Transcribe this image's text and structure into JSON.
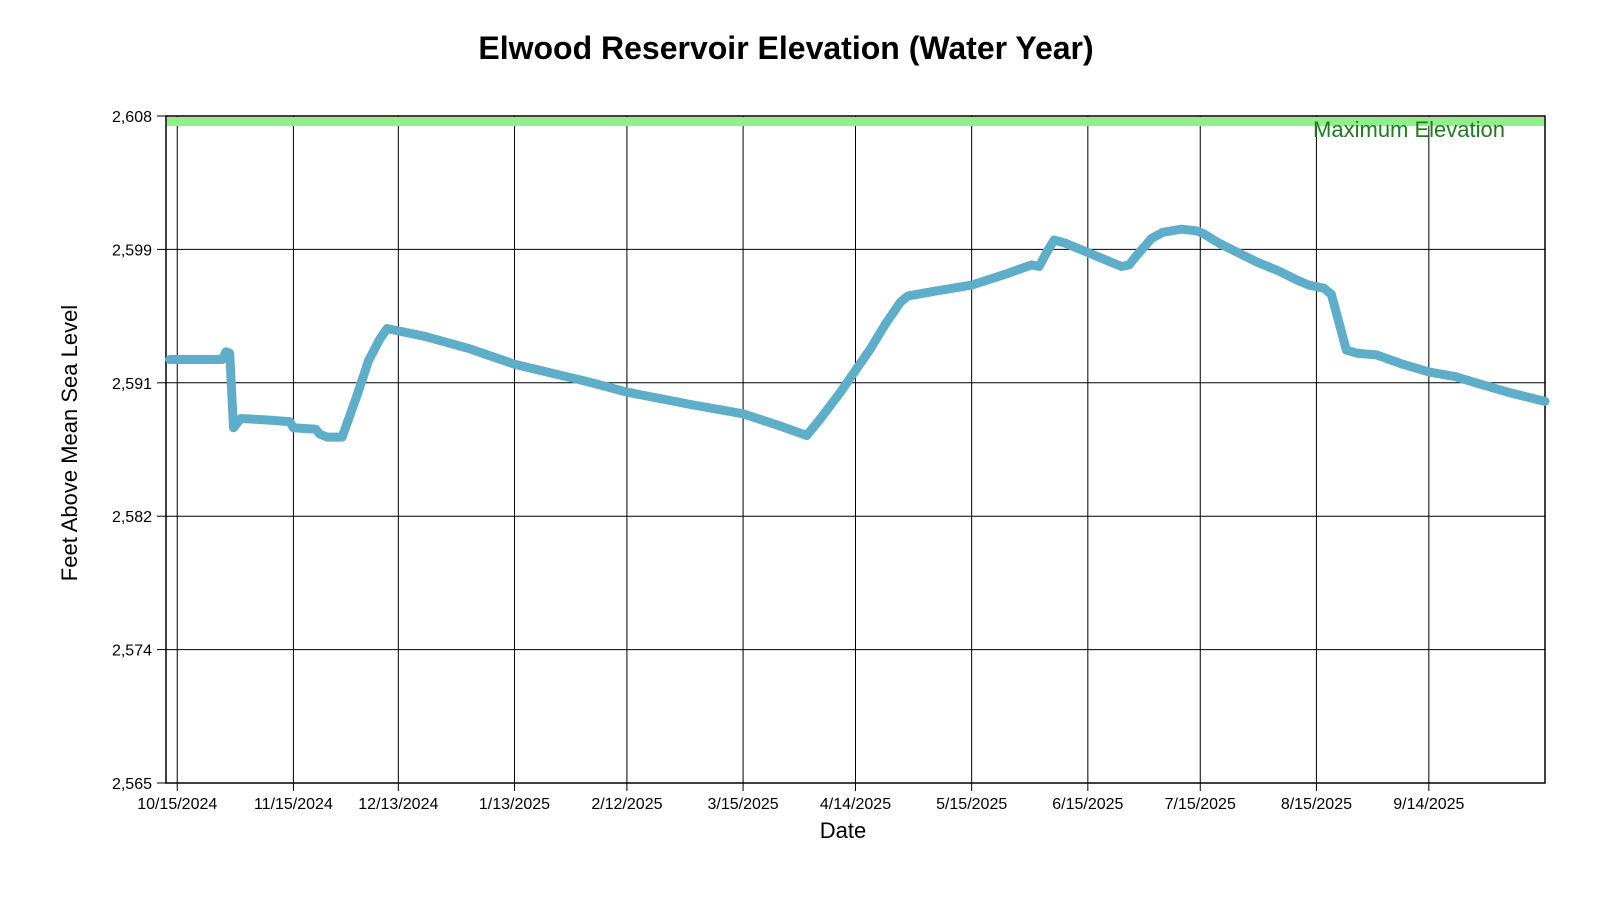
{
  "chart_data": {
    "type": "line",
    "title": "Elwood Reservoir Elevation (Water Year)",
    "xlabel": "Date",
    "ylabel": "Feet Above Mean Sea Level",
    "grid": true,
    "x_range": {
      "min": "2024-10-12",
      "max": "2025-10-15"
    },
    "y_range": {
      "min": 2565,
      "max": 2608
    },
    "x_ticks": [
      {
        "date": "2024-10-15",
        "label": "10/15/2024"
      },
      {
        "date": "2024-11-15",
        "label": "11/15/2024"
      },
      {
        "date": "2024-12-13",
        "label": "12/13/2024"
      },
      {
        "date": "2025-01-13",
        "label": "1/13/2025"
      },
      {
        "date": "2025-02-12",
        "label": "2/12/2025"
      },
      {
        "date": "2025-03-15",
        "label": "3/15/2025"
      },
      {
        "date": "2025-04-14",
        "label": "4/14/2025"
      },
      {
        "date": "2025-05-15",
        "label": "5/15/2025"
      },
      {
        "date": "2025-06-15",
        "label": "6/15/2025"
      },
      {
        "date": "2025-07-15",
        "label": "7/15/2025"
      },
      {
        "date": "2025-08-15",
        "label": "8/15/2025"
      },
      {
        "date": "2025-09-14",
        "label": "9/14/2025"
      }
    ],
    "y_ticks": [
      {
        "value": 2565.0,
        "label": "2,565"
      },
      {
        "value": 2573.6,
        "label": "2,574"
      },
      {
        "value": 2582.2,
        "label": "2,582"
      },
      {
        "value": 2590.8,
        "label": "2,591"
      },
      {
        "value": 2599.4,
        "label": "2,599"
      },
      {
        "value": 2608.0,
        "label": "2,608"
      }
    ],
    "max_elevation": {
      "value": 2608,
      "label": "Maximum Elevation",
      "band_color": "#90EE90",
      "text_color": "#1E7B1E"
    },
    "series": [
      {
        "name": "Reservoir Elevation",
        "color": "#5FAEC9",
        "width": 9,
        "points": [
          [
            "2024-10-13",
            2592.3
          ],
          [
            "2024-10-27",
            2592.3
          ],
          [
            "2024-10-28",
            2592.8
          ],
          [
            "2024-10-29",
            2592.7
          ],
          [
            "2024-10-30",
            2587.9
          ],
          [
            "2024-11-01",
            2588.5
          ],
          [
            "2024-11-08",
            2588.4
          ],
          [
            "2024-11-14",
            2588.3
          ],
          [
            "2024-11-15",
            2587.9
          ],
          [
            "2024-11-21",
            2587.8
          ],
          [
            "2024-11-22",
            2587.5
          ],
          [
            "2024-11-24",
            2587.3
          ],
          [
            "2024-11-28",
            2587.3
          ],
          [
            "2024-12-02",
            2590.0
          ],
          [
            "2024-12-05",
            2592.2
          ],
          [
            "2024-12-08",
            2593.6
          ],
          [
            "2024-12-10",
            2594.3
          ],
          [
            "2024-12-12",
            2594.2
          ],
          [
            "2024-12-20",
            2593.8
          ],
          [
            "2025-01-01",
            2593.0
          ],
          [
            "2025-01-13",
            2592.0
          ],
          [
            "2025-02-01",
            2590.9
          ],
          [
            "2025-02-12",
            2590.2
          ],
          [
            "2025-03-01",
            2589.4
          ],
          [
            "2025-03-15",
            2588.8
          ],
          [
            "2025-03-25",
            2588.0
          ],
          [
            "2025-04-01",
            2587.4
          ],
          [
            "2025-04-05",
            2588.6
          ],
          [
            "2025-04-10",
            2590.2
          ],
          [
            "2025-04-14",
            2591.6
          ],
          [
            "2025-04-18",
            2593.0
          ],
          [
            "2025-04-22",
            2594.6
          ],
          [
            "2025-04-26",
            2596.0
          ],
          [
            "2025-04-28",
            2596.4
          ],
          [
            "2025-05-05",
            2596.7
          ],
          [
            "2025-05-15",
            2597.1
          ],
          [
            "2025-05-24",
            2597.8
          ],
          [
            "2025-05-31",
            2598.4
          ],
          [
            "2025-06-02",
            2598.3
          ],
          [
            "2025-06-04",
            2599.2
          ],
          [
            "2025-06-06",
            2600.0
          ],
          [
            "2025-06-09",
            2599.8
          ],
          [
            "2025-06-15",
            2599.2
          ],
          [
            "2025-06-20",
            2598.7
          ],
          [
            "2025-06-24",
            2598.3
          ],
          [
            "2025-06-26",
            2598.4
          ],
          [
            "2025-06-28",
            2599.0
          ],
          [
            "2025-07-02",
            2600.1
          ],
          [
            "2025-07-05",
            2600.5
          ],
          [
            "2025-07-10",
            2600.7
          ],
          [
            "2025-07-14",
            2600.6
          ],
          [
            "2025-07-16",
            2600.4
          ],
          [
            "2025-07-20",
            2599.8
          ],
          [
            "2025-07-25",
            2599.2
          ],
          [
            "2025-07-30",
            2598.6
          ],
          [
            "2025-08-05",
            2598.0
          ],
          [
            "2025-08-10",
            2597.4
          ],
          [
            "2025-08-13",
            2597.1
          ],
          [
            "2025-08-17",
            2596.9
          ],
          [
            "2025-08-19",
            2596.5
          ],
          [
            "2025-08-23",
            2592.9
          ],
          [
            "2025-08-26",
            2592.7
          ],
          [
            "2025-08-31",
            2592.6
          ],
          [
            "2025-09-07",
            2592.0
          ],
          [
            "2025-09-14",
            2591.5
          ],
          [
            "2025-09-21",
            2591.2
          ],
          [
            "2025-09-28",
            2590.7
          ],
          [
            "2025-10-05",
            2590.2
          ],
          [
            "2025-10-15",
            2589.6
          ]
        ]
      }
    ]
  }
}
